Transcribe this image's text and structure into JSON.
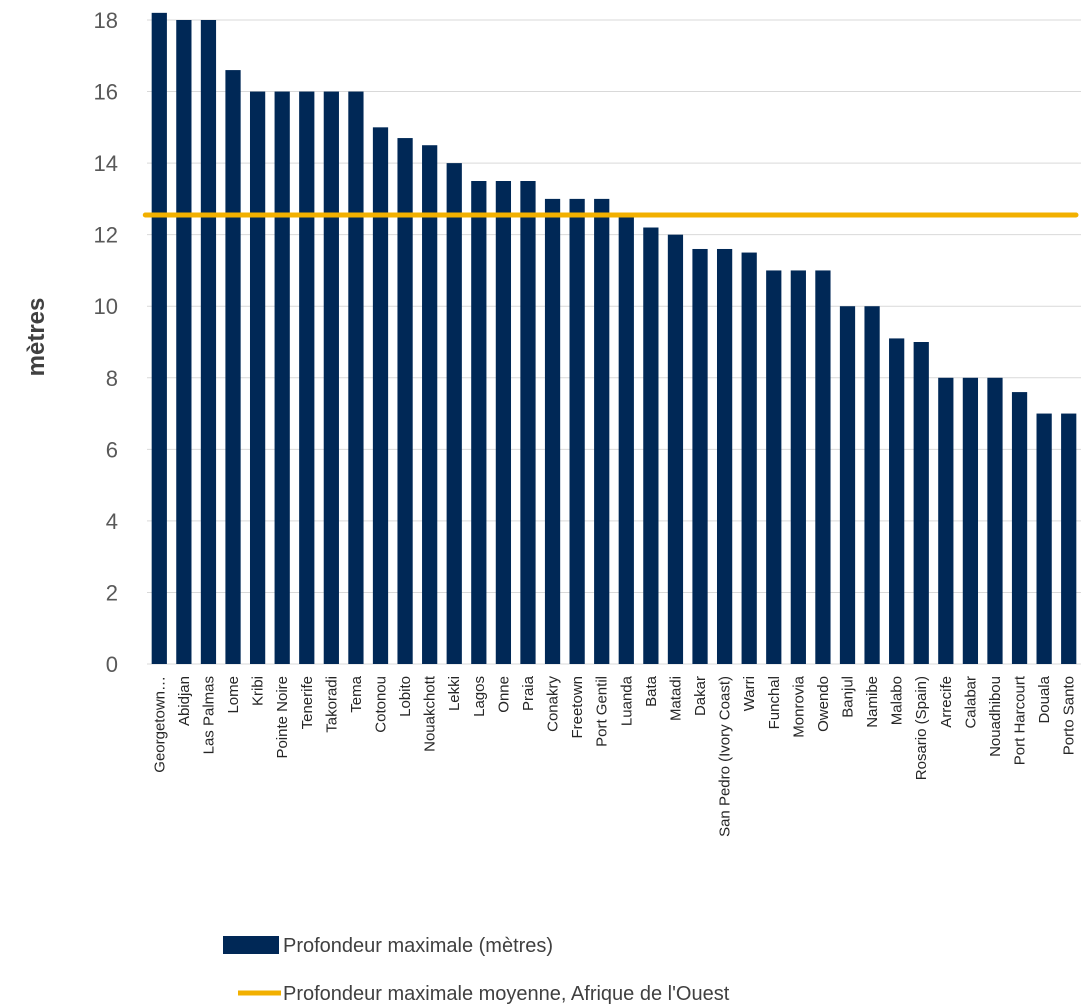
{
  "chart_data": {
    "type": "bar",
    "ylabel": "mètres",
    "ylim": [
      0,
      18
    ],
    "yticks": [
      0,
      2,
      4,
      6,
      8,
      10,
      12,
      14,
      16,
      18
    ],
    "grid": true,
    "categories": [
      "Georgetown…",
      "Abidjan",
      "Las Palmas",
      "Lome",
      "Kribi",
      "Pointe Noire",
      "Tenerife",
      "Takoradi",
      "Tema",
      "Cotonou",
      "Lobito",
      "Nouakchott",
      "Lekki",
      "Lagos",
      "Onne",
      "Praia",
      "Conakry",
      "Freetown",
      "Port Gentil",
      "Luanda",
      "Bata",
      "Matadi",
      "Dakar",
      "San Pedro (Ivory Coast)",
      "Warri",
      "Funchal",
      "Monrovia",
      "Owendo",
      "Banjul",
      "Namibe",
      "Malabo",
      "Rosario (Spain)",
      "Arrecife",
      "Calabar",
      "Nouadhibou",
      "Port Harcourt",
      "Douala",
      "Porto Santo"
    ],
    "series": [
      {
        "name": "Profondeur maximale (mètres)",
        "kind": "bar",
        "color": "#002856",
        "values": [
          18.2,
          18,
          18,
          16.6,
          16,
          16,
          16,
          16,
          16,
          15,
          14.7,
          14.5,
          14,
          13.5,
          13.5,
          13.5,
          13,
          13,
          13,
          12.5,
          12.2,
          12,
          11.6,
          11.6,
          11.5,
          11,
          11,
          11,
          10,
          10,
          9.1,
          9,
          8,
          8,
          8,
          7.6,
          7,
          7
        ]
      },
      {
        "name": "Profondeur maximale moyenne, Afrique de l'Ouest",
        "kind": "line",
        "color": "#F2B000",
        "value": 12.55
      }
    ],
    "legend_position": "bottom"
  }
}
